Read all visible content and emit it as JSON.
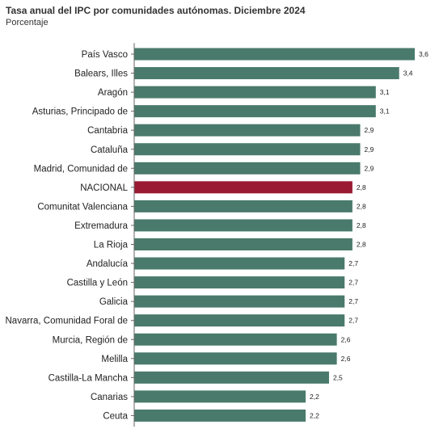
{
  "chart_data": {
    "type": "bar",
    "orientation": "horizontal",
    "title": "Tasa anual del IPC por comunidades autónomas. Diciembre 2024",
    "subtitle": "Porcentaje",
    "xlabel": "",
    "ylabel": "",
    "xlim": [
      0,
      3.6
    ],
    "grid": false,
    "legend": "none",
    "categories": [
      "País Vasco",
      "Balears, Illes",
      "Aragón",
      "Asturias, Principado de",
      "Cantabria",
      "Cataluña",
      "Madrid, Comunidad de",
      "NACIONAL",
      "Comunitat Valenciana",
      "Extremadura",
      "La Rioja",
      "Andalucía",
      "Castilla y León",
      "Galicia",
      "Navarra, Comunidad Foral de",
      "Murcia, Región de",
      "Melilla",
      "Castilla-La Mancha",
      "Canarias",
      "Ceuta"
    ],
    "values": [
      3.6,
      3.4,
      3.1,
      3.1,
      2.9,
      2.9,
      2.9,
      2.8,
      2.8,
      2.8,
      2.8,
      2.7,
      2.7,
      2.7,
      2.7,
      2.6,
      2.6,
      2.5,
      2.2,
      2.2
    ],
    "value_labels": [
      "3,6",
      "3,4",
      "3,1",
      "3,1",
      "2,9",
      "2,9",
      "2,9",
      "2,8",
      "2,8",
      "2,8",
      "2,8",
      "2,7",
      "2,7",
      "2,7",
      "2,7",
      "2,6",
      "2,6",
      "2,5",
      "2,2",
      "2,2"
    ],
    "highlight_category": "NACIONAL",
    "colors": {
      "bar": "#4a7a6b",
      "highlight": "#9a1a33",
      "axis": "#666666"
    }
  }
}
